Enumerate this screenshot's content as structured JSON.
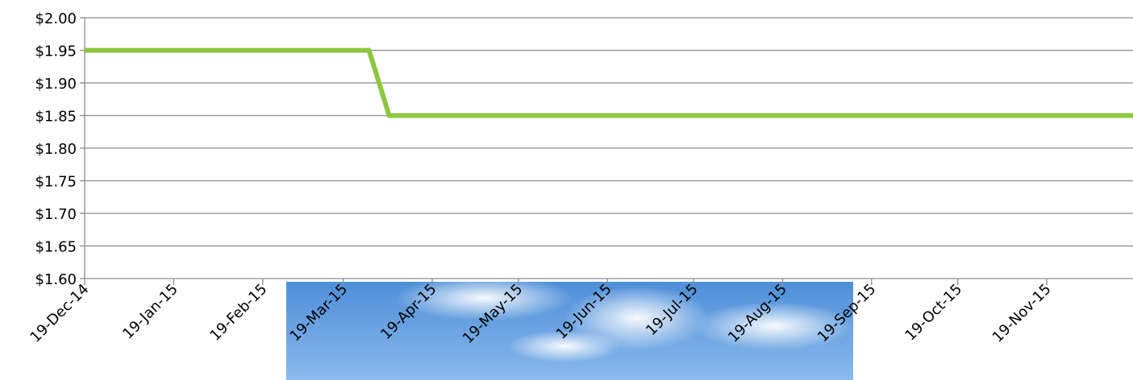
{
  "chart_data": {
    "type": "line",
    "x": [
      "2014-12-19",
      "2015-03-28",
      "2015-04-04",
      "2015-12-19"
    ],
    "series": [
      {
        "color": "#8dc63f",
        "values": [
          1.95,
          1.95,
          1.85,
          1.85
        ]
      }
    ],
    "xlim": [
      "2014-12-19",
      "2015-12-19"
    ],
    "xticks": [
      {
        "value": "2014-12-19",
        "label": "19-Dec-14"
      },
      {
        "value": "2015-01-19",
        "label": "19-Jan-15"
      },
      {
        "value": "2015-02-19",
        "label": "19-Feb-15"
      },
      {
        "value": "2015-03-19",
        "label": "19-Mar-15"
      },
      {
        "value": "2015-04-19",
        "label": "19-Apr-15"
      },
      {
        "value": "2015-05-19",
        "label": "19-May-15"
      },
      {
        "value": "2015-06-19",
        "label": "19-Jun-15"
      },
      {
        "value": "2015-07-19",
        "label": "19-Jul-15"
      },
      {
        "value": "2015-08-19",
        "label": "19-Aug-15"
      },
      {
        "value": "2015-09-19",
        "label": "19-Sep-15"
      },
      {
        "value": "2015-10-19",
        "label": "19-Oct-15"
      },
      {
        "value": "2015-11-19",
        "label": "19-Nov-15"
      }
    ],
    "ylim": [
      1.6,
      2.0
    ],
    "yticks": [
      {
        "value": 1.6,
        "label": "$1.60"
      },
      {
        "value": 1.65,
        "label": "$1.65"
      },
      {
        "value": 1.7,
        "label": "$1.70"
      },
      {
        "value": 1.75,
        "label": "$1.75"
      },
      {
        "value": 1.8,
        "label": "$1.80"
      },
      {
        "value": 1.85,
        "label": "$1.85"
      },
      {
        "value": 1.9,
        "label": "$1.90"
      },
      {
        "value": 1.95,
        "label": "$1.95"
      },
      {
        "value": 2.0,
        "label": "$2.00"
      }
    ],
    "grid": true
  }
}
